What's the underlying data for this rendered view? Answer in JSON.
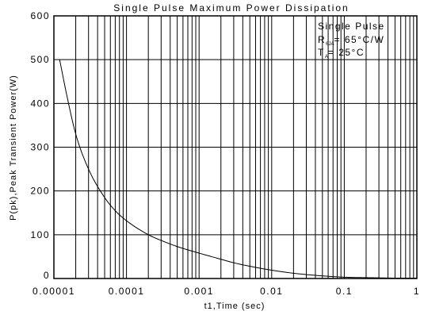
{
  "chart_data": {
    "type": "line",
    "title": "Single Pulse Maximum Power Dissipation",
    "xlabel": "t1,Time (sec)",
    "ylabel": "P(pk),Peak Transient Power(W)",
    "x_scale": "log",
    "xlim": [
      1e-05,
      1
    ],
    "ylim": [
      0,
      600
    ],
    "x_ticks": [
      "0.00001",
      "0.0001",
      "0.001",
      "0.01",
      "0.1",
      "1"
    ],
    "y_ticks": [
      "0",
      "100",
      "200",
      "300",
      "400",
      "500",
      "600"
    ],
    "grid": true,
    "annotations": {
      "line1": "Single Pulse",
      "line2_main": "R",
      "line2_sub": "θJA",
      "line2_rest": "= 65°C/W",
      "line3_main": "T",
      "line3_sub": "A",
      "line3_rest": "= 25°C"
    },
    "series": [
      {
        "x": [
          1.2e-05,
          1.5e-05,
          2e-05,
          3e-05,
          5e-05,
          7e-05,
          0.0001,
          0.0002,
          0.0003,
          0.0005,
          0.001,
          0.002,
          0.003,
          0.005,
          0.01,
          0.02,
          0.03,
          0.05,
          0.1,
          0.2,
          0.3,
          0.5,
          1
        ],
        "y": [
          500,
          420,
          330,
          250,
          185,
          155,
          132,
          100,
          87,
          73,
          58,
          44,
          36,
          28,
          19,
          12,
          9,
          6,
          3,
          2,
          1.5,
          1,
          1
        ]
      }
    ]
  }
}
